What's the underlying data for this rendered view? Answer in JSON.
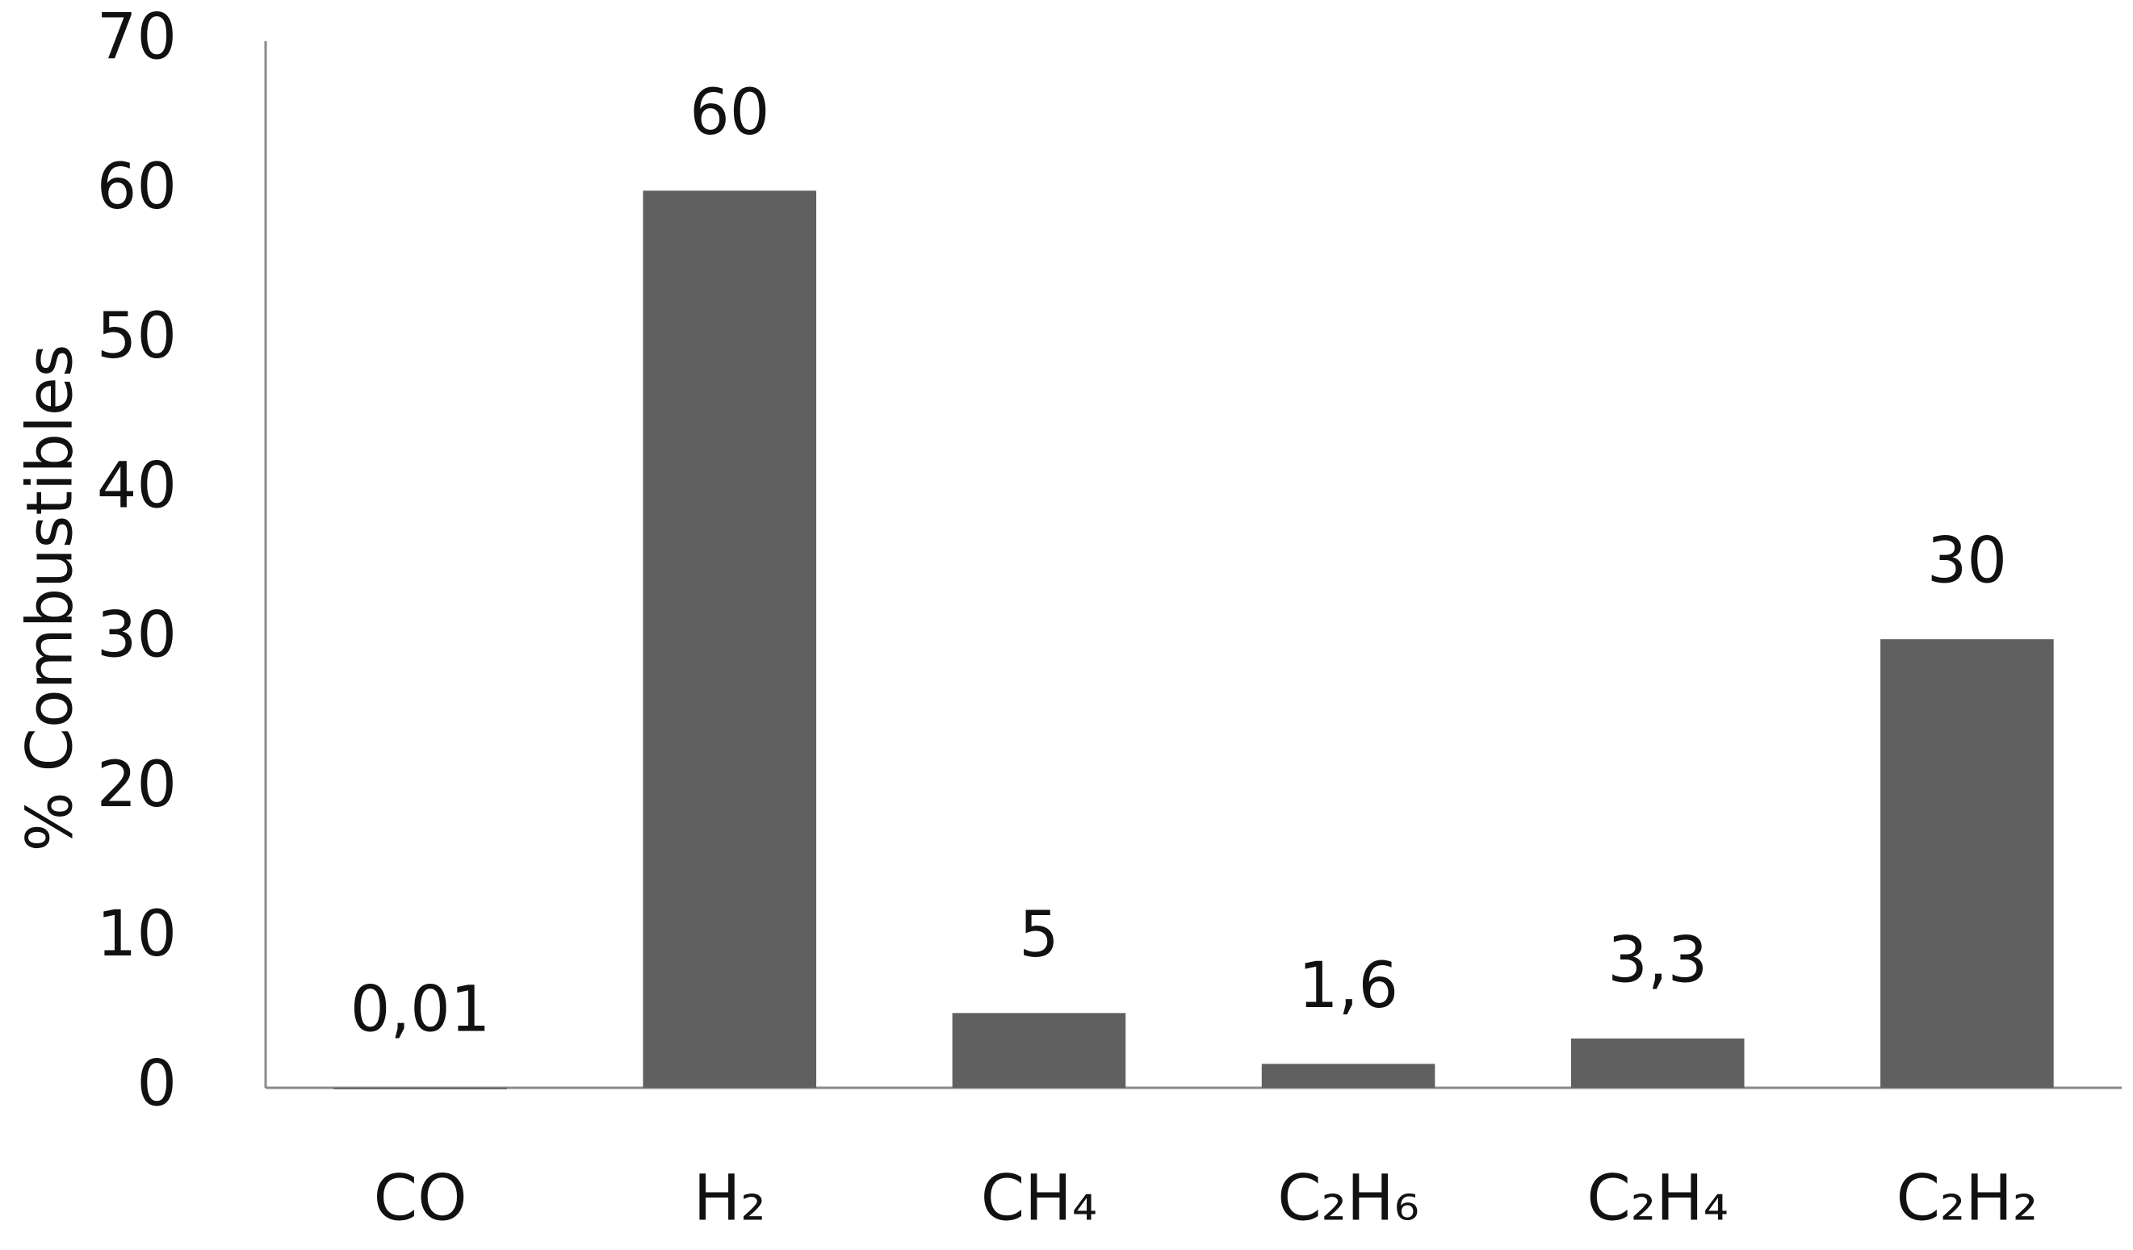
{
  "chart_data": {
    "type": "bar",
    "y_label": "% Combustibles",
    "categories": [
      "CO",
      "H₂",
      "CH₄",
      "C₂H₆",
      "C₂H₄",
      "C₂H₂"
    ],
    "values": [
      0.01,
      60,
      5,
      1.6,
      3.3,
      30
    ],
    "value_labels": [
      "0,01",
      "60",
      "5",
      "1,6",
      "3,3",
      "30"
    ],
    "color": "#606060",
    "ylim": [
      0,
      70
    ],
    "yticks": [
      0,
      10,
      20,
      30,
      40,
      50,
      60,
      70
    ],
    "grid": false
  }
}
